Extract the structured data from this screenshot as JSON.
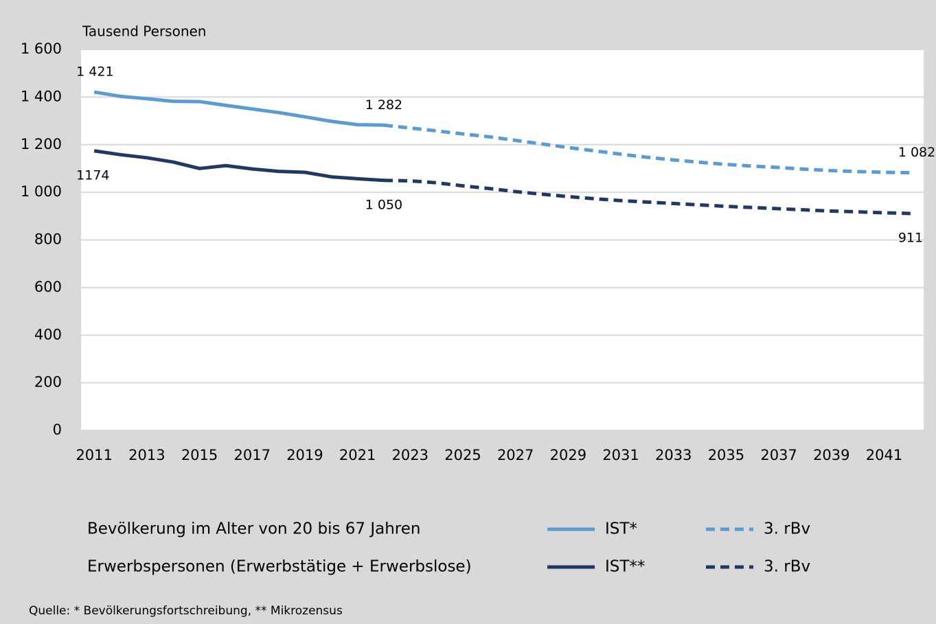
{
  "chart_data": {
    "type": "line",
    "y_label": "Tausend Personen",
    "source": "Quelle: * Bevölkerungsfortschreibung, ** Mikrozensus",
    "x": [
      2011,
      2012,
      2013,
      2014,
      2015,
      2016,
      2017,
      2018,
      2019,
      2020,
      2021,
      2022,
      2023,
      2024,
      2025,
      2026,
      2027,
      2028,
      2029,
      2030,
      2031,
      2032,
      2033,
      2034,
      2035,
      2036,
      2037,
      2038,
      2039,
      2040,
      2041,
      2042
    ],
    "xlim": [
      2010.5,
      2042.5
    ],
    "xticks": [
      2011,
      2013,
      2015,
      2017,
      2019,
      2021,
      2023,
      2025,
      2027,
      2029,
      2031,
      2033,
      2035,
      2037,
      2039,
      2041
    ],
    "ylim": [
      0,
      1600
    ],
    "yticks": [
      0,
      200,
      400,
      600,
      800,
      {
        "value": 1000,
        "label": "1 000"
      },
      {
        "value": 1200,
        "label": "1 200"
      },
      {
        "value": 1400,
        "label": "1 400"
      },
      {
        "value": 1600,
        "label": "1 600"
      }
    ],
    "grid": true,
    "legend_rows": [
      "Bevölkerung im Alter von 20 bis 67 Jahren",
      "Erwerbspersonen (Erwerbstätige + Erwerbslose)"
    ],
    "series": [
      {
        "name": "IST*",
        "color": "#5b9bd5",
        "dashed": false,
        "values": [
          1421,
          1403,
          1393,
          1382,
          1381,
          1365,
          1350,
          1335,
          1317,
          1298,
          1284,
          1282,
          null,
          null,
          null,
          null,
          null,
          null,
          null,
          null,
          null,
          null,
          null,
          null,
          null,
          null,
          null,
          null,
          null,
          null,
          null,
          null
        ],
        "value_labels": [
          "1 421",
          null,
          null,
          null,
          null,
          null,
          null,
          null,
          null,
          null,
          null,
          null,
          null,
          null,
          null,
          null,
          null,
          null,
          null,
          null,
          null,
          null,
          null,
          null,
          null,
          null,
          null,
          null,
          null,
          null,
          null,
          null
        ]
      },
      {
        "name": "3. rBv",
        "color": "#5b9bd5",
        "dashed": true,
        "values": [
          null,
          null,
          null,
          null,
          null,
          null,
          null,
          null,
          null,
          null,
          null,
          1282,
          1270,
          1258,
          1245,
          1233,
          1218,
          1203,
          1188,
          1174,
          1160,
          1147,
          1136,
          1126,
          1117,
          1110,
          1104,
          1097,
          1091,
          1087,
          1084,
          1082
        ],
        "value_labels": [
          null,
          null,
          null,
          null,
          null,
          null,
          null,
          null,
          null,
          null,
          null,
          "1 282",
          null,
          null,
          null,
          null,
          null,
          null,
          null,
          null,
          null,
          null,
          null,
          null,
          null,
          null,
          null,
          null,
          null,
          null,
          null,
          "1 082"
        ]
      },
      {
        "name": "IST**",
        "color": "#1f3864",
        "dashed": false,
        "values": [
          1174,
          1158,
          1145,
          1127,
          1100,
          1112,
          1098,
          1088,
          1084,
          1065,
          1057,
          1050,
          null,
          null,
          null,
          null,
          null,
          null,
          null,
          null,
          null,
          null,
          null,
          null,
          null,
          null,
          null,
          null,
          null,
          null,
          null,
          null
        ],
        "value_labels": [
          "1174",
          null,
          null,
          null,
          null,
          null,
          null,
          null,
          null,
          null,
          null,
          null,
          null,
          null,
          null,
          null,
          null,
          null,
          null,
          null,
          null,
          null,
          null,
          null,
          null,
          null,
          null,
          null,
          null,
          null,
          null,
          null
        ]
      },
      {
        "name": "3. rBv",
        "color": "#1f3864",
        "dashed": true,
        "values": [
          null,
          null,
          null,
          null,
          null,
          null,
          null,
          null,
          null,
          null,
          null,
          1050,
          1048,
          1040,
          1027,
          1016,
          1003,
          992,
          982,
          973,
          965,
          959,
          953,
          947,
          941,
          936,
          931,
          926,
          921,
          918,
          914,
          911
        ],
        "value_labels": [
          null,
          null,
          null,
          null,
          null,
          null,
          null,
          null,
          null,
          null,
          null,
          "1 050",
          null,
          null,
          null,
          null,
          null,
          null,
          null,
          null,
          null,
          null,
          null,
          null,
          null,
          null,
          null,
          null,
          null,
          null,
          null,
          "911"
        ]
      }
    ]
  }
}
